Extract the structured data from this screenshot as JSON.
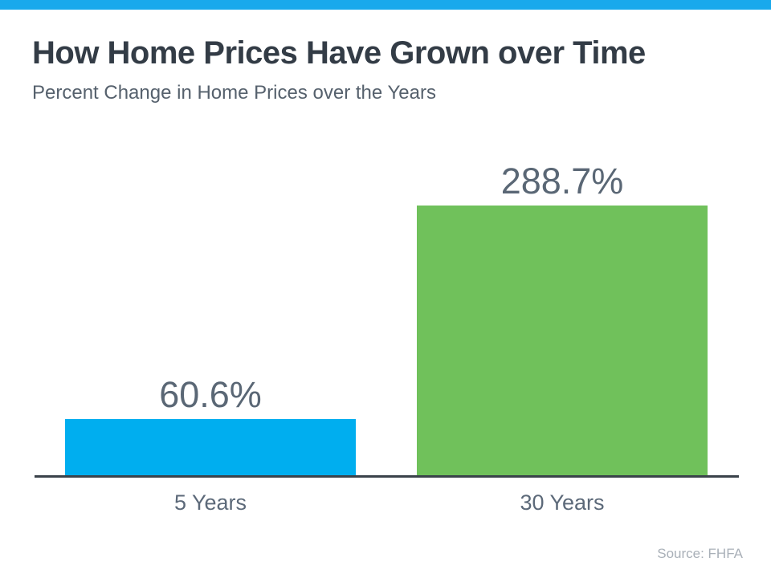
{
  "page": {
    "background_color": "#ffffff",
    "top_strip_color": "#19A9EC"
  },
  "header": {
    "title": "How Home Prices Have Grown over Time",
    "subtitle": "Percent Change in Home Prices over the Years"
  },
  "source_note": "Source: FHFA",
  "chart_data": {
    "type": "bar",
    "title": "How Home Prices Have Grown over Time",
    "subtitle": "Percent Change in Home Prices over the Years",
    "categories": [
      "5 Years",
      "30 Years"
    ],
    "values": [
      60.6,
      288.7
    ],
    "value_labels": [
      "60.6%",
      "288.7%"
    ],
    "bar_colors": [
      "#00AEEF",
      "#70C15B"
    ],
    "xlabel": "",
    "ylabel": "",
    "ylim": [
      0,
      310
    ],
    "grid": false,
    "legend_position": "none",
    "value_label_color": "#5A6775",
    "category_label_color": "#5C6979",
    "axis_color": "#3A424A",
    "source": "Source: FHFA"
  }
}
